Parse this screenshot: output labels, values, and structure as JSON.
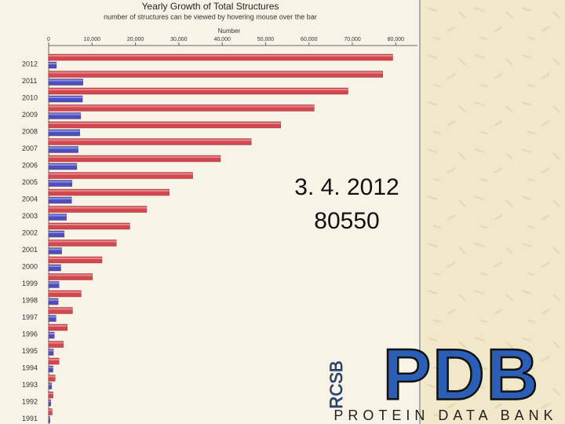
{
  "chart_data": {
    "type": "bar",
    "orientation": "horizontal",
    "title": "Yearly Growth of Total Structures",
    "subtitle": "number of structures can be viewed by hovering mouse over the bar",
    "x_label": "Number",
    "categories": [
      "2012",
      "2011",
      "2010",
      "2009",
      "2008",
      "2007",
      "2006",
      "2005",
      "2004",
      "2003",
      "2002",
      "2001",
      "2000",
      "1999",
      "1998",
      "1997",
      "1996",
      "1995",
      "1994",
      "1993",
      "1992",
      "1991"
    ],
    "series": [
      {
        "color": "#d4474f",
        "values": [
          79300,
          77000,
          69000,
          61200,
          53500,
          46700,
          39600,
          33200,
          27800,
          22600,
          18700,
          15600,
          12300,
          10100,
          7500,
          5500,
          4300,
          3400,
          2400,
          1500,
          1000,
          800
        ]
      },
      {
        "color": "#4a4fc4",
        "values": [
          1800,
          7900,
          7800,
          7400,
          7200,
          6800,
          6500,
          5400,
          5300,
          4100,
          3600,
          3000,
          2800,
          2400,
          2200,
          1700,
          1300,
          1100,
          1000,
          700,
          500,
          300
        ]
      }
    ],
    "xlim": [
      0,
      85000
    ],
    "xticks": [
      0,
      {
        "value": 10000,
        "label": "10,000"
      },
      {
        "value": 20000,
        "label": "20,000"
      },
      {
        "value": 30000,
        "label": "30,000"
      },
      {
        "value": 40000,
        "label": "40,000"
      },
      {
        "value": 50000,
        "label": "50,000"
      },
      {
        "value": 60000,
        "label": "60,000"
      },
      {
        "value": 70000,
        "label": "70,000"
      },
      {
        "value": 80000,
        "label": "80,000"
      }
    ],
    "grid": false
  },
  "annotation": {
    "date": "3. 4. 2012",
    "count": "80550"
  },
  "logo": {
    "org": "RCSB",
    "name": "PDB",
    "full_name": "PROTEIN DATA BANK"
  }
}
